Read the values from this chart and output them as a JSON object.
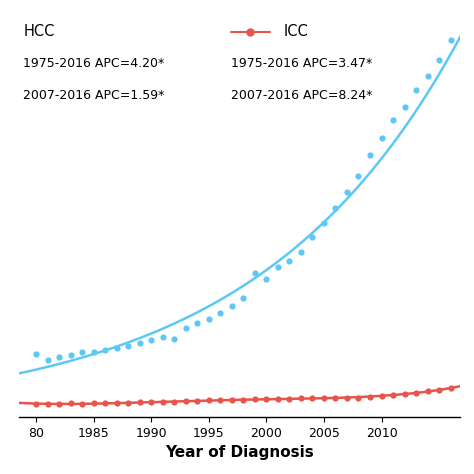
{
  "xlabel": "Year of Diagnosis",
  "hcc_color": "#5BC8F5",
  "icc_color": "#E8534A",
  "hcc_scatter_x": [
    1980,
    1981,
    1982,
    1983,
    1984,
    1985,
    1986,
    1987,
    1988,
    1989,
    1990,
    1991,
    1992,
    1993,
    1994,
    1995,
    1996,
    1997,
    1998,
    1999,
    2000,
    2001,
    2002,
    2003,
    2004,
    2005,
    2006,
    2007,
    2008,
    2009,
    2010,
    2011,
    2012,
    2013,
    2014,
    2015,
    2016
  ],
  "hcc_scatter_y": [
    1.8,
    1.62,
    1.72,
    1.78,
    1.85,
    1.85,
    1.92,
    1.98,
    2.04,
    2.12,
    2.2,
    2.28,
    2.22,
    2.55,
    2.7,
    2.8,
    2.98,
    3.18,
    3.4,
    4.1,
    3.95,
    4.28,
    4.45,
    4.72,
    5.15,
    5.55,
    5.98,
    6.42,
    6.88,
    7.48,
    7.98,
    8.48,
    8.85,
    9.35,
    9.75,
    10.2,
    10.75
  ],
  "icc_scatter_x": [
    1980,
    1981,
    1982,
    1983,
    1984,
    1985,
    1986,
    1987,
    1988,
    1989,
    1990,
    1991,
    1992,
    1993,
    1994,
    1995,
    1996,
    1997,
    1998,
    1999,
    2000,
    2001,
    2002,
    2003,
    2004,
    2005,
    2006,
    2007,
    2008,
    2009,
    2010,
    2011,
    2012,
    2013,
    2014,
    2015,
    2016
  ],
  "icc_scatter_y": [
    0.38,
    0.37,
    0.38,
    0.39,
    0.38,
    0.39,
    0.4,
    0.4,
    0.41,
    0.42,
    0.43,
    0.42,
    0.44,
    0.45,
    0.46,
    0.48,
    0.48,
    0.49,
    0.5,
    0.51,
    0.52,
    0.52,
    0.53,
    0.54,
    0.54,
    0.54,
    0.55,
    0.55,
    0.56,
    0.57,
    0.6,
    0.62,
    0.67,
    0.7,
    0.74,
    0.78,
    0.82
  ],
  "background_color": "#ffffff",
  "legend_hcc_label": "HCC",
  "legend_icc_label": "ICC",
  "legend_hcc_apc1": "1975-2016 APC=4.20*",
  "legend_hcc_apc2": "2007-2016 APC=1.59*",
  "legend_icc_apc1": "1975-2016 APC=3.47*",
  "legend_icc_apc2": "2007-2016 APC=8.24*"
}
